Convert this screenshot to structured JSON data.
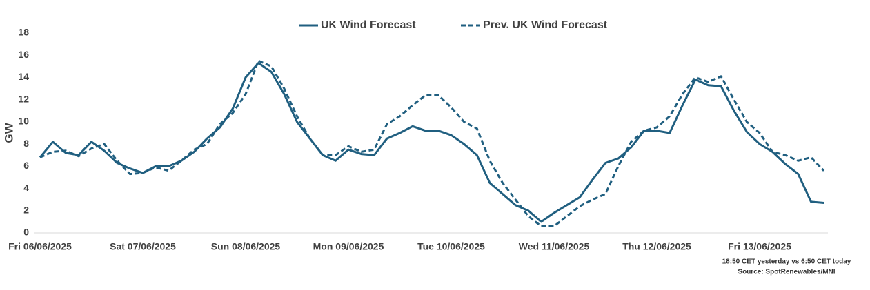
{
  "chart_data": {
    "type": "line",
    "y_label": "GW",
    "notes": [
      "18:50 CET yesterday vs  6:50 CET today",
      "Source: SpotRenewables/MNI"
    ],
    "categories": [
      "Fri 06/06/2025",
      null,
      null,
      null,
      null,
      null,
      null,
      null,
      "Sat 07/06/2025",
      null,
      null,
      null,
      null,
      null,
      null,
      null,
      "Sun 08/06/2025",
      null,
      null,
      null,
      null,
      null,
      null,
      null,
      "Mon 09/06/2025",
      null,
      null,
      null,
      null,
      null,
      null,
      null,
      "Tue 10/06/2025",
      null,
      null,
      null,
      null,
      null,
      null,
      null,
      "Wed 11/06/2025",
      null,
      null,
      null,
      null,
      null,
      null,
      null,
      "Thu 12/06/2025",
      null,
      null,
      null,
      null,
      null,
      null,
      null,
      "Fri 13/06/2025",
      null,
      null,
      null,
      null,
      null
    ],
    "series": [
      {
        "name": "UK Wind Forecast",
        "color": "#205f80",
        "dashed": false,
        "values": [
          6.8,
          8.2,
          7.2,
          7.0,
          8.2,
          7.4,
          6.3,
          5.8,
          5.4,
          6.0,
          6.0,
          6.5,
          7.3,
          8.5,
          9.5,
          11.2,
          14.0,
          15.3,
          14.5,
          12.5,
          10.0,
          8.5,
          7.0,
          6.5,
          7.5,
          7.1,
          7.0,
          8.5,
          9.0,
          9.6,
          9.2,
          9.2,
          8.8,
          8.0,
          7.0,
          4.5,
          3.5,
          2.5,
          2.0,
          1.0,
          1.8,
          2.5,
          3.2,
          4.8,
          6.3,
          6.7,
          7.7,
          9.2,
          9.2,
          9.0,
          11.5,
          13.8,
          13.3,
          13.2,
          11.0,
          9.1,
          8.0,
          7.3,
          6.2,
          5.3,
          2.8,
          2.7
        ]
      },
      {
        "name": "Prev. UK Wind Forecast",
        "color": "#205f80",
        "dashed": true,
        "values": [
          6.8,
          7.3,
          7.4,
          6.9,
          7.6,
          8.0,
          6.5,
          5.3,
          5.4,
          5.9,
          5.6,
          6.5,
          7.5,
          8.0,
          9.8,
          10.8,
          12.5,
          15.5,
          15.0,
          13.0,
          10.5,
          8.5,
          7.0,
          7.0,
          7.8,
          7.3,
          7.5,
          9.8,
          10.5,
          11.5,
          12.4,
          12.4,
          11.3,
          10.0,
          9.4,
          6.5,
          4.5,
          3.0,
          1.5,
          0.6,
          0.6,
          1.5,
          2.4,
          3.0,
          3.5,
          6.0,
          8.2,
          9.2,
          9.5,
          10.5,
          12.5,
          14.0,
          13.6,
          14.1,
          12.0,
          10.0,
          9.0,
          7.3,
          7.0,
          6.5,
          6.8,
          5.6
        ]
      }
    ],
    "ylim": [
      0,
      18
    ],
    "yticks": [
      0,
      2,
      4,
      6,
      8,
      10,
      12,
      14,
      16,
      18
    ],
    "grid": false,
    "legend": "top"
  }
}
